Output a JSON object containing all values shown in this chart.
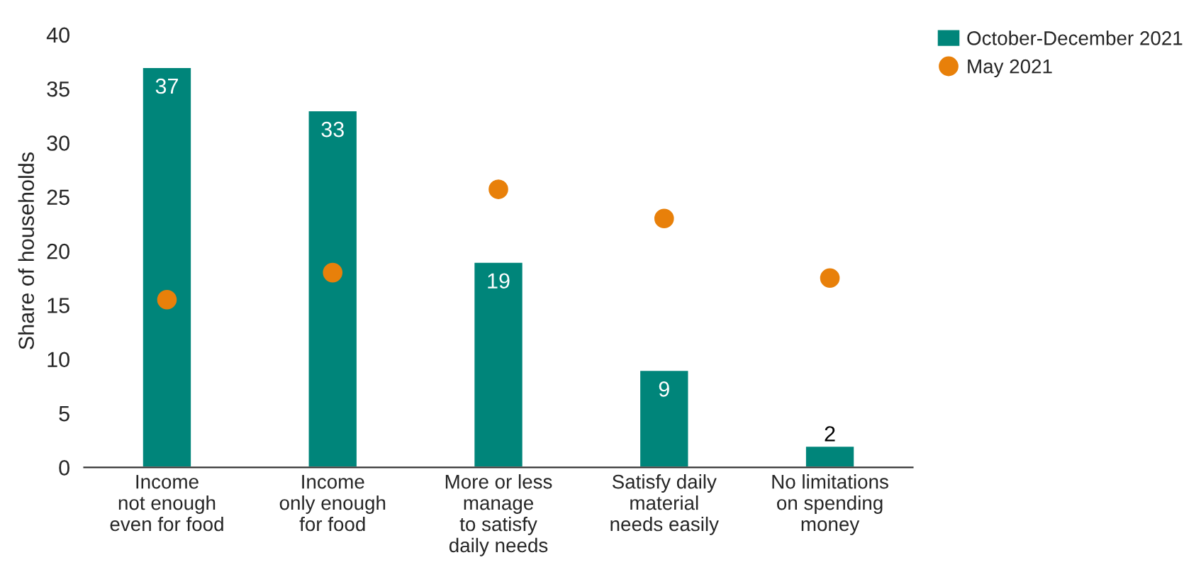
{
  "chart_data": {
    "type": "bar",
    "ylabel": "Share of households",
    "categories": [
      "Income\nnot enough\neven for food",
      "Income\nonly enough\nfor food",
      "More or less\nmanage\nto satisfy\ndaily needs",
      "Satisfy daily\nmaterial\nneeds easily",
      "No limitations\non spending\nmoney"
    ],
    "series": [
      {
        "name": "October-December 2021",
        "color": "#00857a",
        "values": [
          37,
          33,
          19,
          9,
          2
        ],
        "data_labels": true
      },
      {
        "name": "May 2021",
        "type": "scatter",
        "color": "#e8800a",
        "values": [
          15.5,
          18,
          25.7,
          23,
          17.5
        ]
      }
    ],
    "ylim": [
      0,
      40
    ],
    "yticks": [
      0,
      5,
      10,
      15,
      20,
      25,
      30,
      35,
      40
    ],
    "grid": false,
    "legend": "top right",
    "marker": "circle"
  }
}
